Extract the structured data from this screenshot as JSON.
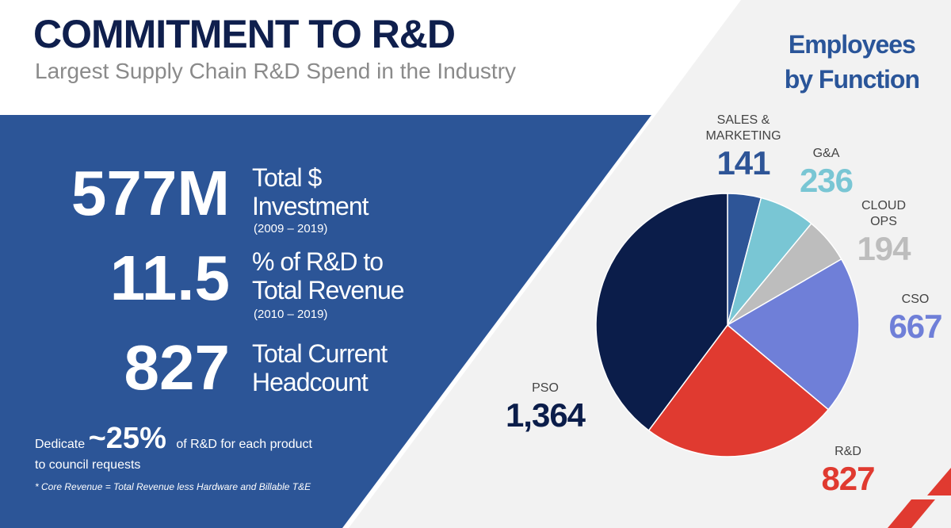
{
  "header": {
    "title": "COMMITMENT TO R&D",
    "subtitle": "Largest Supply Chain R&D Spend in the Industry"
  },
  "stats": [
    {
      "value": "577M",
      "label1": "Total $",
      "label2": "Investment",
      "note": "(2009 – 2019)"
    },
    {
      "value": "11.5",
      "label1": "% of R&D to",
      "label2": "Total Revenue",
      "note": "(2010 – 2019)"
    },
    {
      "value": "827",
      "label1": "Total Current",
      "label2": "Headcount"
    }
  ],
  "dedicate": {
    "pre": "Dedicate",
    "big": "~25%",
    "post": "of R&D for each product",
    "line2": "to council requests"
  },
  "footnote": "* Core Revenue = Total Revenue less Hardware and Billable T&E",
  "chart_data": {
    "type": "pie",
    "title_line1": "Employees",
    "title_line2": "by Function",
    "slices": [
      {
        "label1": "SALES &",
        "label2": "MARKETING",
        "display": "141",
        "value": 141,
        "color": "#2e5597",
        "text_color": "#2e5597"
      },
      {
        "label1": "G&A",
        "label2": "",
        "display": "236",
        "value": 236,
        "color": "#79c6d4",
        "text_color": "#79c6d4"
      },
      {
        "label1": "CLOUD",
        "label2": "OPS",
        "display": "194",
        "value": 194,
        "color": "#bdbdbd",
        "text_color": "#bdbdbd"
      },
      {
        "label1": "CSO",
        "label2": "",
        "display": "667",
        "value": 667,
        "color": "#6f7fd8",
        "text_color": "#6f7fd8"
      },
      {
        "label1": "R&D",
        "label2": "",
        "display": "827",
        "value": 827,
        "color": "#e03a30",
        "text_color": "#e03a30"
      },
      {
        "label1": "PSO",
        "label2": "",
        "display": "1,364",
        "value": 1364,
        "color": "#0b1d4a",
        "text_color": "#0b1d4a"
      }
    ]
  }
}
